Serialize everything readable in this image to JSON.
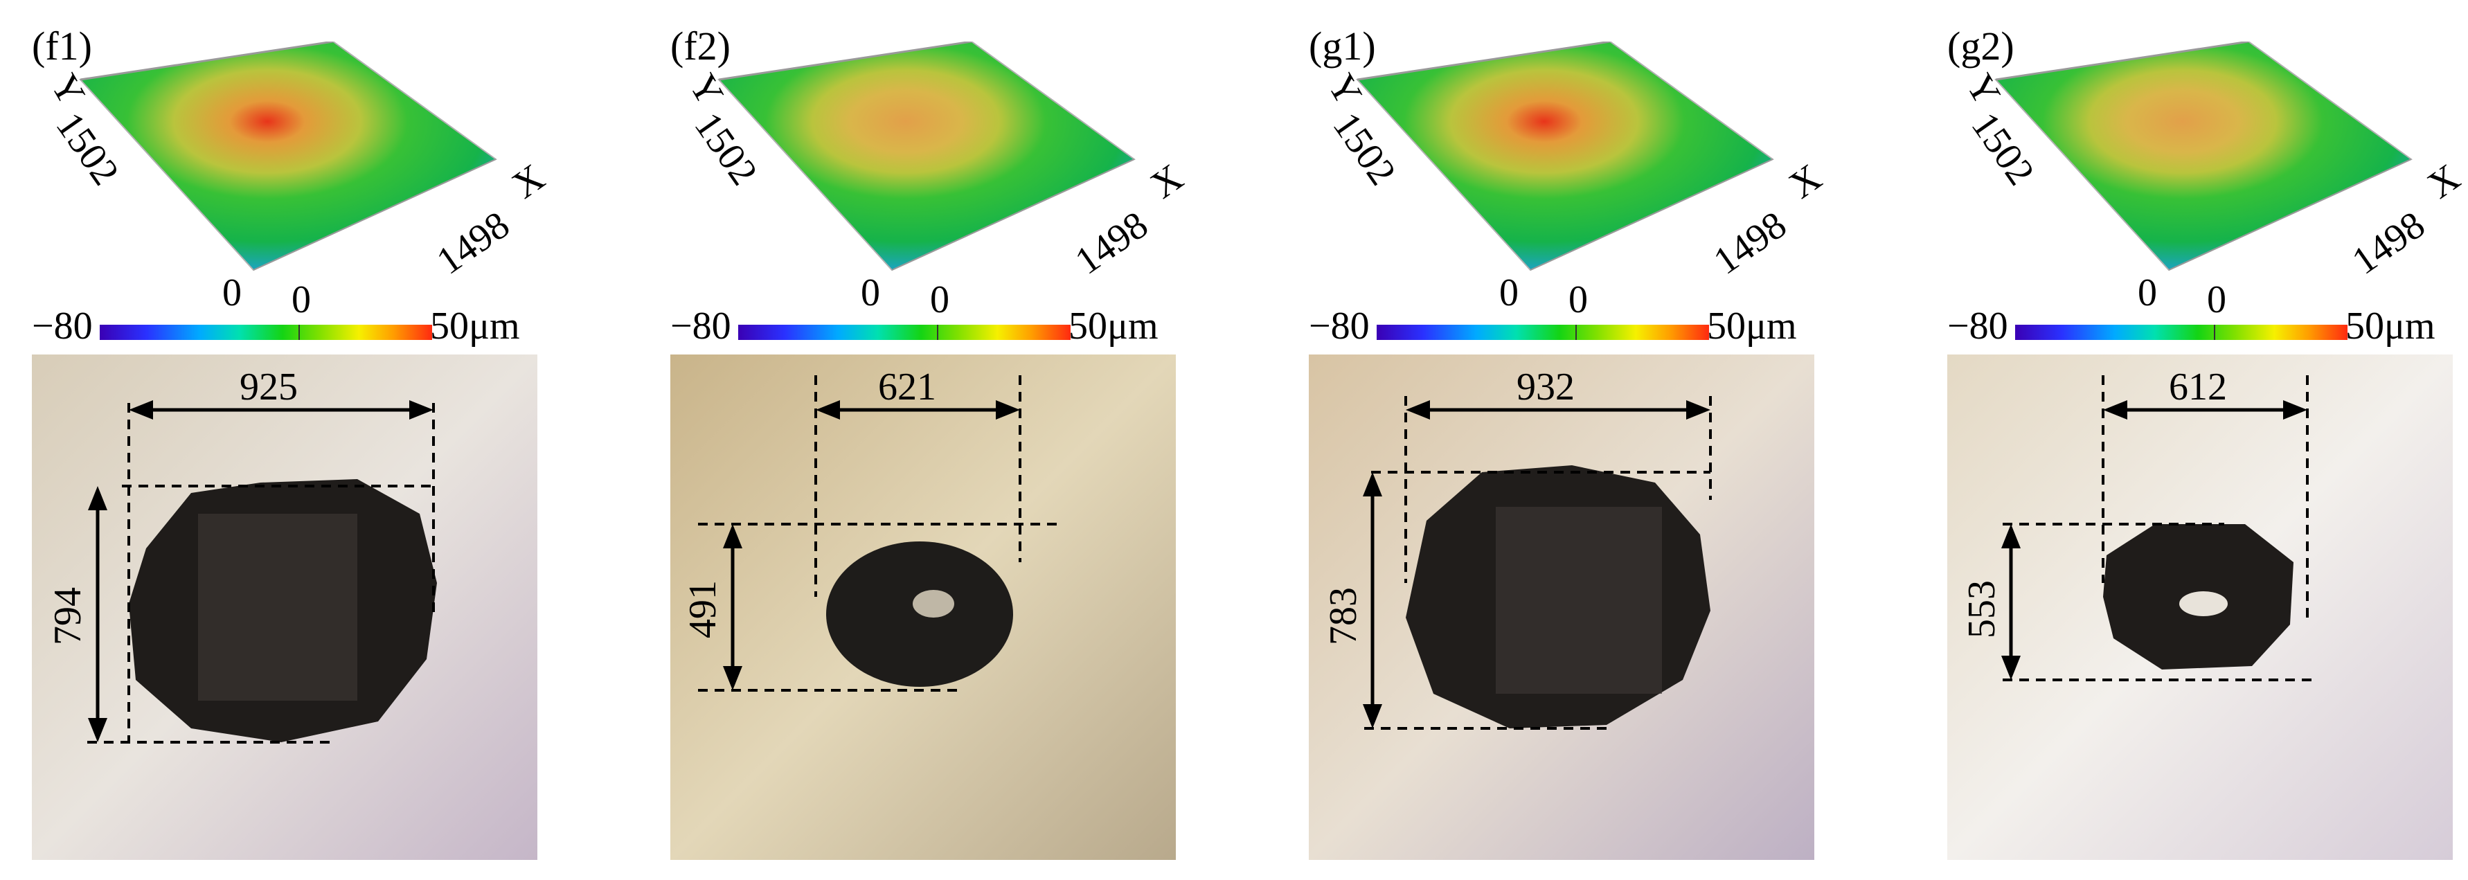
{
  "colorbar": {
    "zero_top": "0",
    "zero_mid": "0",
    "min": "−80",
    "max": "50μm"
  },
  "panels": [
    {
      "top_label": "(f1)",
      "bottom_label": "",
      "axis_y": "Y",
      "axis_x": "X",
      "y_value": "1502",
      "x_value": "1498",
      "width": "925",
      "height": "794"
    },
    {
      "top_label": "(f2)",
      "axis_y": "Y",
      "axis_x": "X",
      "y_value": "1502",
      "x_value": "1498",
      "width": "621",
      "height": "491"
    },
    {
      "top_label": "(g1)",
      "axis_y": "Y",
      "axis_x": "X",
      "y_value": "1502",
      "x_value": "1498",
      "width": "932",
      "height": "783"
    },
    {
      "top_label": "(g2)",
      "axis_y": "Y",
      "axis_x": "X",
      "y_value": "1502",
      "x_value": "1498",
      "width": "612",
      "height": "553"
    }
  ]
}
